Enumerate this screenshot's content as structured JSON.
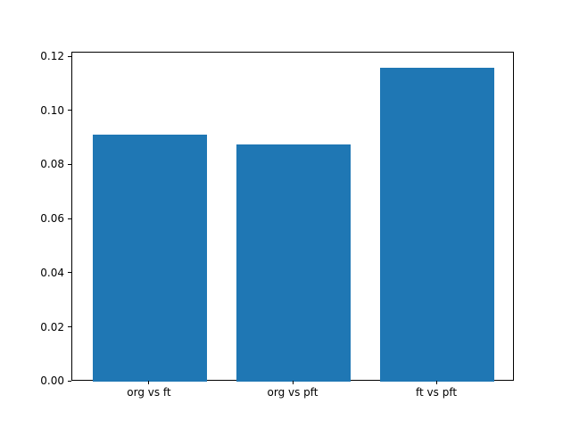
{
  "chart_data": {
    "type": "bar",
    "categories": [
      "org vs ft",
      "org vs pft",
      "ft vs pft"
    ],
    "values": [
      0.0915,
      0.0878,
      0.116
    ],
    "title": "",
    "xlabel": "",
    "ylabel": "",
    "ylim": [
      0,
      0.1218
    ],
    "xlim": [
      -0.54,
      2.54
    ],
    "yticks": [
      0.0,
      0.02,
      0.04,
      0.06,
      0.08,
      0.1,
      0.12
    ],
    "ytick_format_decimals": 2,
    "bar_width": 0.8,
    "bar_color": "#1f77b4",
    "grid": false,
    "legend": false,
    "background_color": "#ffffff",
    "axis_color": "#000000"
  }
}
